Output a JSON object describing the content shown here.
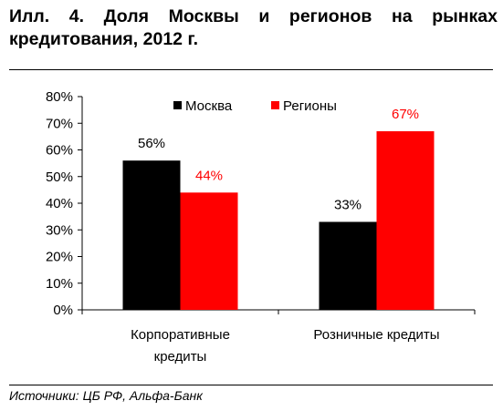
{
  "title": "Илл. 4. Доля Москвы и регионов на рынках кредитования, 2012 г.",
  "source": "Источники: ЦБ РФ, Альфа-Банк",
  "chart_data": {
    "type": "bar",
    "categories": [
      [
        "Корпоративные",
        "кредиты"
      ],
      [
        "Розничные кредиты"
      ]
    ],
    "series": [
      {
        "name": "Москва",
        "values": [
          56,
          33
        ],
        "color": "#000000",
        "label_color": "#000000"
      },
      {
        "name": "Регионы",
        "values": [
          44,
          67
        ],
        "color": "#ff0000",
        "label_color": "#ff0000"
      }
    ],
    "data_labels": [
      [
        "56%",
        "44%"
      ],
      [
        "33%",
        "67%"
      ]
    ],
    "ylim": [
      0,
      80
    ],
    "yticks": [
      0,
      10,
      20,
      30,
      40,
      50,
      60,
      70,
      80
    ],
    "ytick_labels": [
      "0%",
      "10%",
      "20%",
      "30%",
      "40%",
      "50%",
      "60%",
      "70%",
      "80%"
    ],
    "legend_position": "top-center",
    "grid": false
  }
}
